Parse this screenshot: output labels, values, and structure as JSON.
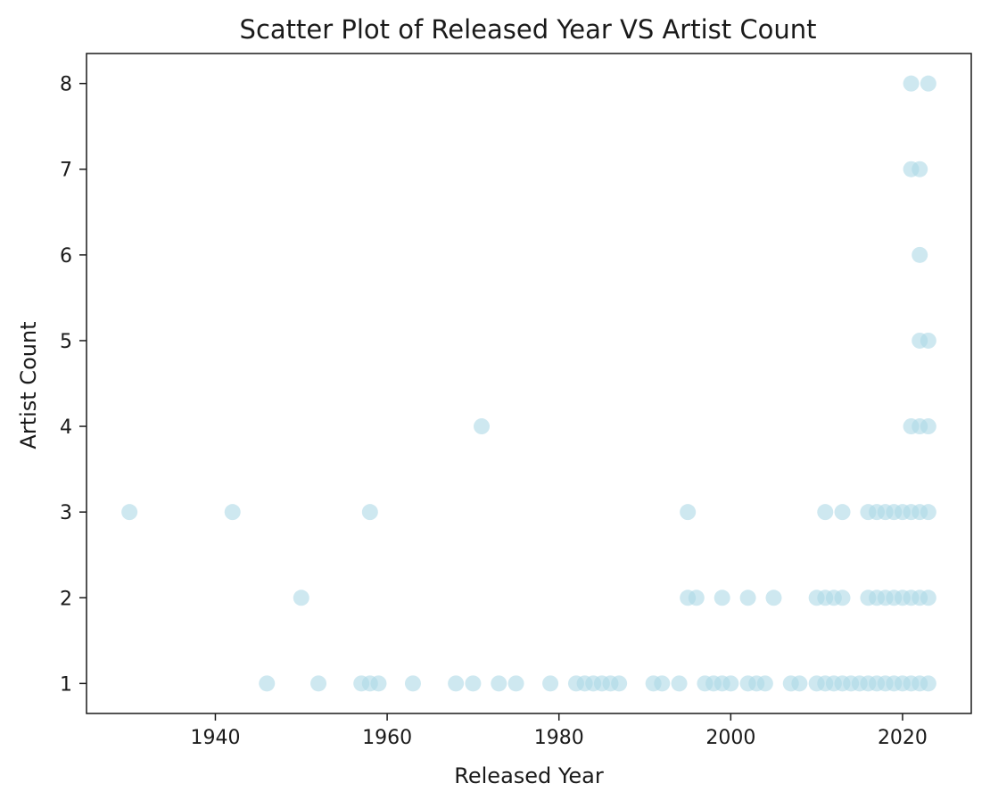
{
  "chart_data": {
    "type": "scatter",
    "title": "Scatter Plot of Released Year VS Artist Count",
    "xlabel": "Released Year",
    "ylabel": "Artist Count",
    "xlim": [
      1925,
      2028
    ],
    "ylim": [
      0.65,
      8.35
    ],
    "xticks": [
      1940,
      1960,
      1980,
      2000,
      2020
    ],
    "yticks": [
      1,
      2,
      3,
      4,
      5,
      6,
      7,
      8
    ],
    "grid": false,
    "legend": "none",
    "marker_color": "#add8e6",
    "marker_alpha": 0.6,
    "points": [
      {
        "x": 1930,
        "y": 3
      },
      {
        "x": 1942,
        "y": 3
      },
      {
        "x": 1958,
        "y": 3
      },
      {
        "x": 1995,
        "y": 3
      },
      {
        "x": 2011,
        "y": 3
      },
      {
        "x": 2013,
        "y": 3
      },
      {
        "x": 2016,
        "y": 3
      },
      {
        "x": 2017,
        "y": 3
      },
      {
        "x": 2018,
        "y": 3
      },
      {
        "x": 2019,
        "y": 3
      },
      {
        "x": 2020,
        "y": 3
      },
      {
        "x": 2021,
        "y": 3
      },
      {
        "x": 2022,
        "y": 3
      },
      {
        "x": 2023,
        "y": 3
      },
      {
        "x": 1971,
        "y": 4
      },
      {
        "x": 2021,
        "y": 4
      },
      {
        "x": 2022,
        "y": 4
      },
      {
        "x": 2023,
        "y": 4
      },
      {
        "x": 2022,
        "y": 5
      },
      {
        "x": 2023,
        "y": 5
      },
      {
        "x": 2022,
        "y": 6
      },
      {
        "x": 2021,
        "y": 7
      },
      {
        "x": 2022,
        "y": 7
      },
      {
        "x": 2021,
        "y": 8
      },
      {
        "x": 2023,
        "y": 8
      },
      {
        "x": 1950,
        "y": 2
      },
      {
        "x": 1995,
        "y": 2
      },
      {
        "x": 1996,
        "y": 2
      },
      {
        "x": 1999,
        "y": 2
      },
      {
        "x": 2002,
        "y": 2
      },
      {
        "x": 2005,
        "y": 2
      },
      {
        "x": 2010,
        "y": 2
      },
      {
        "x": 2011,
        "y": 2
      },
      {
        "x": 2012,
        "y": 2
      },
      {
        "x": 2013,
        "y": 2
      },
      {
        "x": 2016,
        "y": 2
      },
      {
        "x": 2017,
        "y": 2
      },
      {
        "x": 2018,
        "y": 2
      },
      {
        "x": 2019,
        "y": 2
      },
      {
        "x": 2020,
        "y": 2
      },
      {
        "x": 2021,
        "y": 2
      },
      {
        "x": 2022,
        "y": 2
      },
      {
        "x": 2023,
        "y": 2
      },
      {
        "x": 1946,
        "y": 1
      },
      {
        "x": 1952,
        "y": 1
      },
      {
        "x": 1957,
        "y": 1
      },
      {
        "x": 1958,
        "y": 1
      },
      {
        "x": 1959,
        "y": 1
      },
      {
        "x": 1963,
        "y": 1
      },
      {
        "x": 1968,
        "y": 1
      },
      {
        "x": 1970,
        "y": 1
      },
      {
        "x": 1973,
        "y": 1
      },
      {
        "x": 1975,
        "y": 1
      },
      {
        "x": 1979,
        "y": 1
      },
      {
        "x": 1982,
        "y": 1
      },
      {
        "x": 1983,
        "y": 1
      },
      {
        "x": 1984,
        "y": 1
      },
      {
        "x": 1985,
        "y": 1
      },
      {
        "x": 1986,
        "y": 1
      },
      {
        "x": 1987,
        "y": 1
      },
      {
        "x": 1991,
        "y": 1
      },
      {
        "x": 1992,
        "y": 1
      },
      {
        "x": 1994,
        "y": 1
      },
      {
        "x": 1997,
        "y": 1
      },
      {
        "x": 1998,
        "y": 1
      },
      {
        "x": 1999,
        "y": 1
      },
      {
        "x": 2000,
        "y": 1
      },
      {
        "x": 2002,
        "y": 1
      },
      {
        "x": 2003,
        "y": 1
      },
      {
        "x": 2004,
        "y": 1
      },
      {
        "x": 2007,
        "y": 1
      },
      {
        "x": 2008,
        "y": 1
      },
      {
        "x": 2010,
        "y": 1
      },
      {
        "x": 2011,
        "y": 1
      },
      {
        "x": 2012,
        "y": 1
      },
      {
        "x": 2013,
        "y": 1
      },
      {
        "x": 2014,
        "y": 1
      },
      {
        "x": 2015,
        "y": 1
      },
      {
        "x": 2016,
        "y": 1
      },
      {
        "x": 2017,
        "y": 1
      },
      {
        "x": 2018,
        "y": 1
      },
      {
        "x": 2019,
        "y": 1
      },
      {
        "x": 2020,
        "y": 1
      },
      {
        "x": 2021,
        "y": 1
      },
      {
        "x": 2022,
        "y": 1
      },
      {
        "x": 2023,
        "y": 1
      }
    ]
  }
}
